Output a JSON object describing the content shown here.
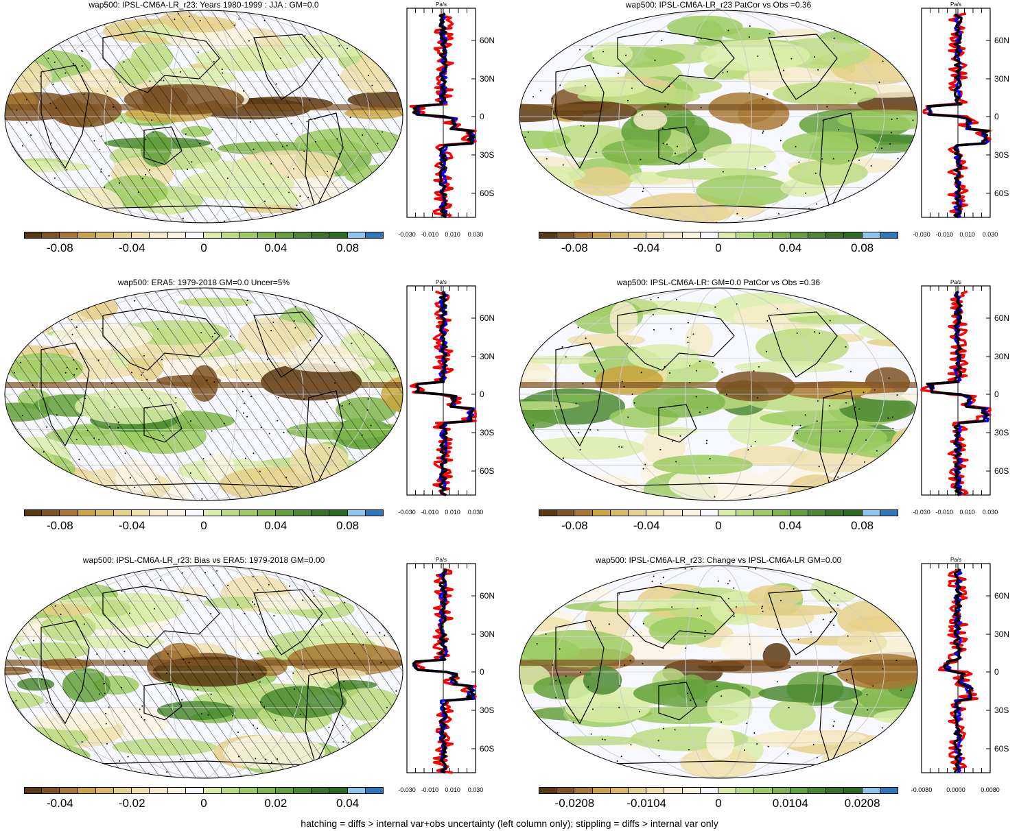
{
  "colors": [
    "#5a3812",
    "#7e5423",
    "#a87832",
    "#c9a440",
    "#d8bb62",
    "#e6d08a",
    "#efe0ab",
    "#f6ecca",
    "#faf4e2",
    "#f7f8fd",
    "#dbeda9",
    "#bcdc80",
    "#9ccb60",
    "#7fb64a",
    "#63a03b",
    "#4b8a31",
    "#367326",
    "#2c6a24",
    "#8cc6f0",
    "#2d79c0"
  ],
  "legend_colors": {
    "model": "#000000",
    "obs": "#0000ff",
    "diff": "#ff0000"
  },
  "profile_axis": {
    "unit": "Pa/s",
    "lat_labels": [
      "60N",
      "30N",
      "0",
      "30S",
      "60S"
    ]
  },
  "panels": [
    {
      "title": "wap500: IPSL-CM6A-LR_r23: Years 1980-1999 : JJA : GM=0.0",
      "cb_labels": [
        "-0.08",
        "-0.04",
        "0",
        "0.04",
        "0.08"
      ],
      "prof_ticks": [
        "-0.030",
        "-0.010",
        "0.010",
        "0.030"
      ],
      "hatch": true
    },
    {
      "title": "wap500: IPSL-CM6A-LR_r23 PatCor vs Obs =0.36",
      "cb_labels": [
        "-0.08",
        "-0.04",
        "0",
        "0.04",
        "0.08"
      ],
      "prof_ticks": [
        "-0.030",
        "-0.010",
        "0.010",
        "0.030"
      ],
      "hatch": false
    },
    {
      "title": "wap500: ERA5: 1979-2018 GM=0.0 Uncer=5%",
      "cb_labels": [
        "-0.08",
        "-0.04",
        "0",
        "0.04",
        "0.08"
      ],
      "prof_ticks": [
        "-0.030",
        "-0.010",
        "0.010",
        "0.030"
      ],
      "hatch": true
    },
    {
      "title": "wap500: IPSL-CM6A-LR: GM=0.0 PatCor vs Obs =0.36",
      "cb_labels": [
        "-0.08",
        "-0.04",
        "0",
        "0.04",
        "0.08"
      ],
      "prof_ticks": [
        "-0.030",
        "-0.010",
        "0.010",
        "0.030"
      ],
      "hatch": false
    },
    {
      "title": "wap500: IPSL-CM6A-LR_r23: Bias vs ERA5: 1979-2018 GM=0.00",
      "cb_labels": [
        "-0.04",
        "-0.02",
        "0",
        "0.02",
        "0.04"
      ],
      "prof_ticks": [
        "-0.030",
        "-0.010",
        "0.010",
        "0.030"
      ],
      "hatch": true
    },
    {
      "title": "wap500: IPSL-CM6A-LR_r23: Change vs IPSL-CM6A-LR GM=0.00",
      "cb_labels": [
        "-0.0208",
        "-0.0104",
        "0",
        "0.0104",
        "0.0208"
      ],
      "prof_ticks": [
        "-0.0080",
        "0.0000",
        "0.0080"
      ],
      "hatch": false
    }
  ],
  "footer": "hatching = diffs > internal var+obs uncertainty (left column only); stippling = diffs > internal var only"
}
